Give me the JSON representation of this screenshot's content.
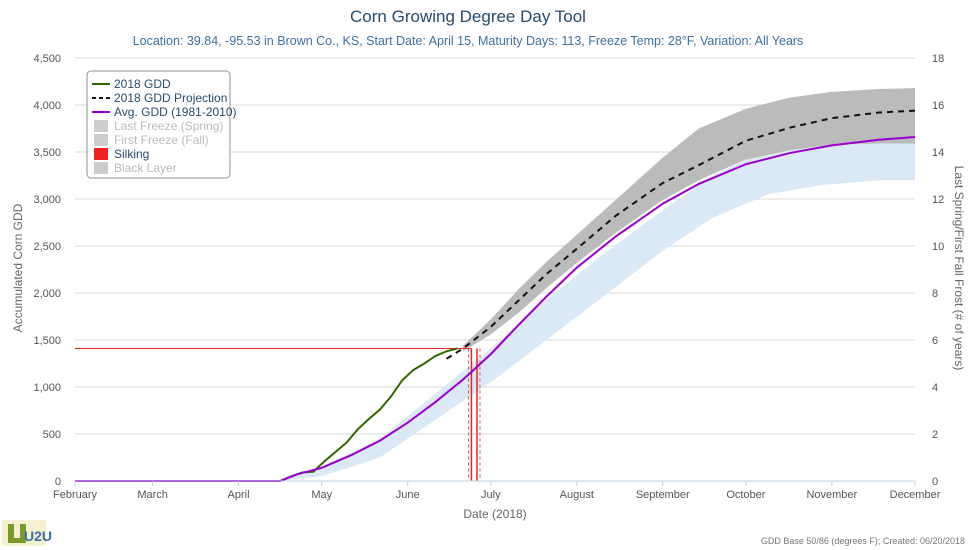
{
  "chart_data": {
    "type": "line",
    "title": "Corn Growing Degree Day Tool",
    "subtitle": "Location: 39.84, -95.53 in Brown Co., KS, Start Date: April 15, Maturity Days: 113, Freeze Temp: 28°F, Variation: All Years",
    "xlabel": "Date (2018)",
    "ylabel": "Accumulated Corn GDD",
    "y2label": "Last Spring/First Fall Frost (# of years)",
    "x_tick_labels": [
      "February",
      "March",
      "April",
      "May",
      "June",
      "July",
      "August",
      "September",
      "October",
      "November",
      "December"
    ],
    "x_tick_days": [
      0,
      28,
      59,
      89,
      120,
      150,
      181,
      212,
      242,
      273,
      303
    ],
    "ylim": [
      0,
      4500
    ],
    "y_ticks": [
      0,
      500,
      1000,
      1500,
      2000,
      2500,
      3000,
      3500,
      4000,
      4500
    ],
    "y_tick_labels": [
      "0",
      "500",
      "1,000",
      "1,500",
      "2,000",
      "2,500",
      "3,000",
      "3,500",
      "4,000",
      "4,500"
    ],
    "y2lim": [
      0,
      18
    ],
    "y2_ticks": [
      0,
      2,
      4,
      6,
      8,
      10,
      12,
      14,
      16,
      18
    ],
    "x_unit": "days since February 1",
    "legend_position": "top-left",
    "grid": true,
    "series": [
      {
        "name": "2018 GDD",
        "style": "solid",
        "color": "#336600",
        "x": [
          0,
          74,
          78,
          82,
          86,
          90,
          94,
          98,
          102,
          106,
          110,
          114,
          118,
          122,
          126,
          130,
          134,
          138
        ],
        "y": [
          0,
          0,
          50,
          90,
          100,
          210,
          310,
          410,
          550,
          660,
          760,
          900,
          1070,
          1180,
          1250,
          1330,
          1380,
          1410
        ]
      },
      {
        "name": "2018 GDD Projection",
        "style": "dashed",
        "color": "#111111",
        "x": [
          134,
          140,
          150,
          160,
          170,
          181,
          195,
          212,
          225,
          242,
          258,
          273,
          290,
          303
        ],
        "y": [
          1300,
          1410,
          1640,
          1920,
          2200,
          2470,
          2820,
          3170,
          3360,
          3620,
          3760,
          3860,
          3920,
          3940
        ]
      },
      {
        "name": "Avg. GDD (1981-2010)",
        "style": "solid",
        "color": "#9900cc",
        "x": [
          0,
          74,
          80,
          89,
          100,
          110,
          120,
          130,
          140,
          150,
          160,
          170,
          181,
          195,
          212,
          225,
          242,
          258,
          273,
          290,
          303
        ],
        "y": [
          0,
          0,
          70,
          140,
          280,
          430,
          620,
          840,
          1080,
          1350,
          1660,
          1960,
          2270,
          2600,
          2950,
          3160,
          3370,
          3490,
          3570,
          3630,
          3660
        ]
      },
      {
        "name": "Last Freeze (Spring)",
        "hidden": true,
        "color": "#cccccc"
      },
      {
        "name": "First Freeze (Fall)",
        "hidden": true,
        "color": "#cccccc"
      },
      {
        "name": "Silking",
        "color": "#ee2222",
        "marker": "band",
        "gdd": 1410,
        "dates_days": [
          143,
          145
        ]
      },
      {
        "name": "Black Layer",
        "hidden": true,
        "color": "#cccccc"
      }
    ],
    "bands": [
      {
        "name": "avg-range",
        "color": "#dbe8f6",
        "x": [
          74,
          89,
          110,
          130,
          150,
          170,
          190,
          212,
          230,
          250,
          270,
          290,
          303
        ],
        "lower": [
          0,
          50,
          250,
          650,
          1050,
          1500,
          1950,
          2450,
          2800,
          3050,
          3150,
          3200,
          3200
        ],
        "upper": [
          0,
          150,
          450,
          930,
          1410,
          1930,
          2400,
          2880,
          3250,
          3530,
          3700,
          3820,
          3850
        ]
      },
      {
        "name": "projection-range",
        "color": "#bbbbbb",
        "x": [
          140,
          150,
          160,
          170,
          181,
          195,
          212,
          225,
          242,
          258,
          273,
          290,
          303
        ],
        "lower": [
          1380,
          1560,
          1790,
          2050,
          2320,
          2640,
          2990,
          3200,
          3420,
          3520,
          3580,
          3590,
          3590
        ],
        "upper": [
          1440,
          1720,
          2040,
          2330,
          2620,
          2990,
          3440,
          3750,
          3960,
          4080,
          4140,
          4170,
          4180
        ]
      }
    ]
  },
  "credit": "GDD Base 50/86 (degrees F); Created: 06/20/2018",
  "logo": {
    "text": "U2U"
  }
}
